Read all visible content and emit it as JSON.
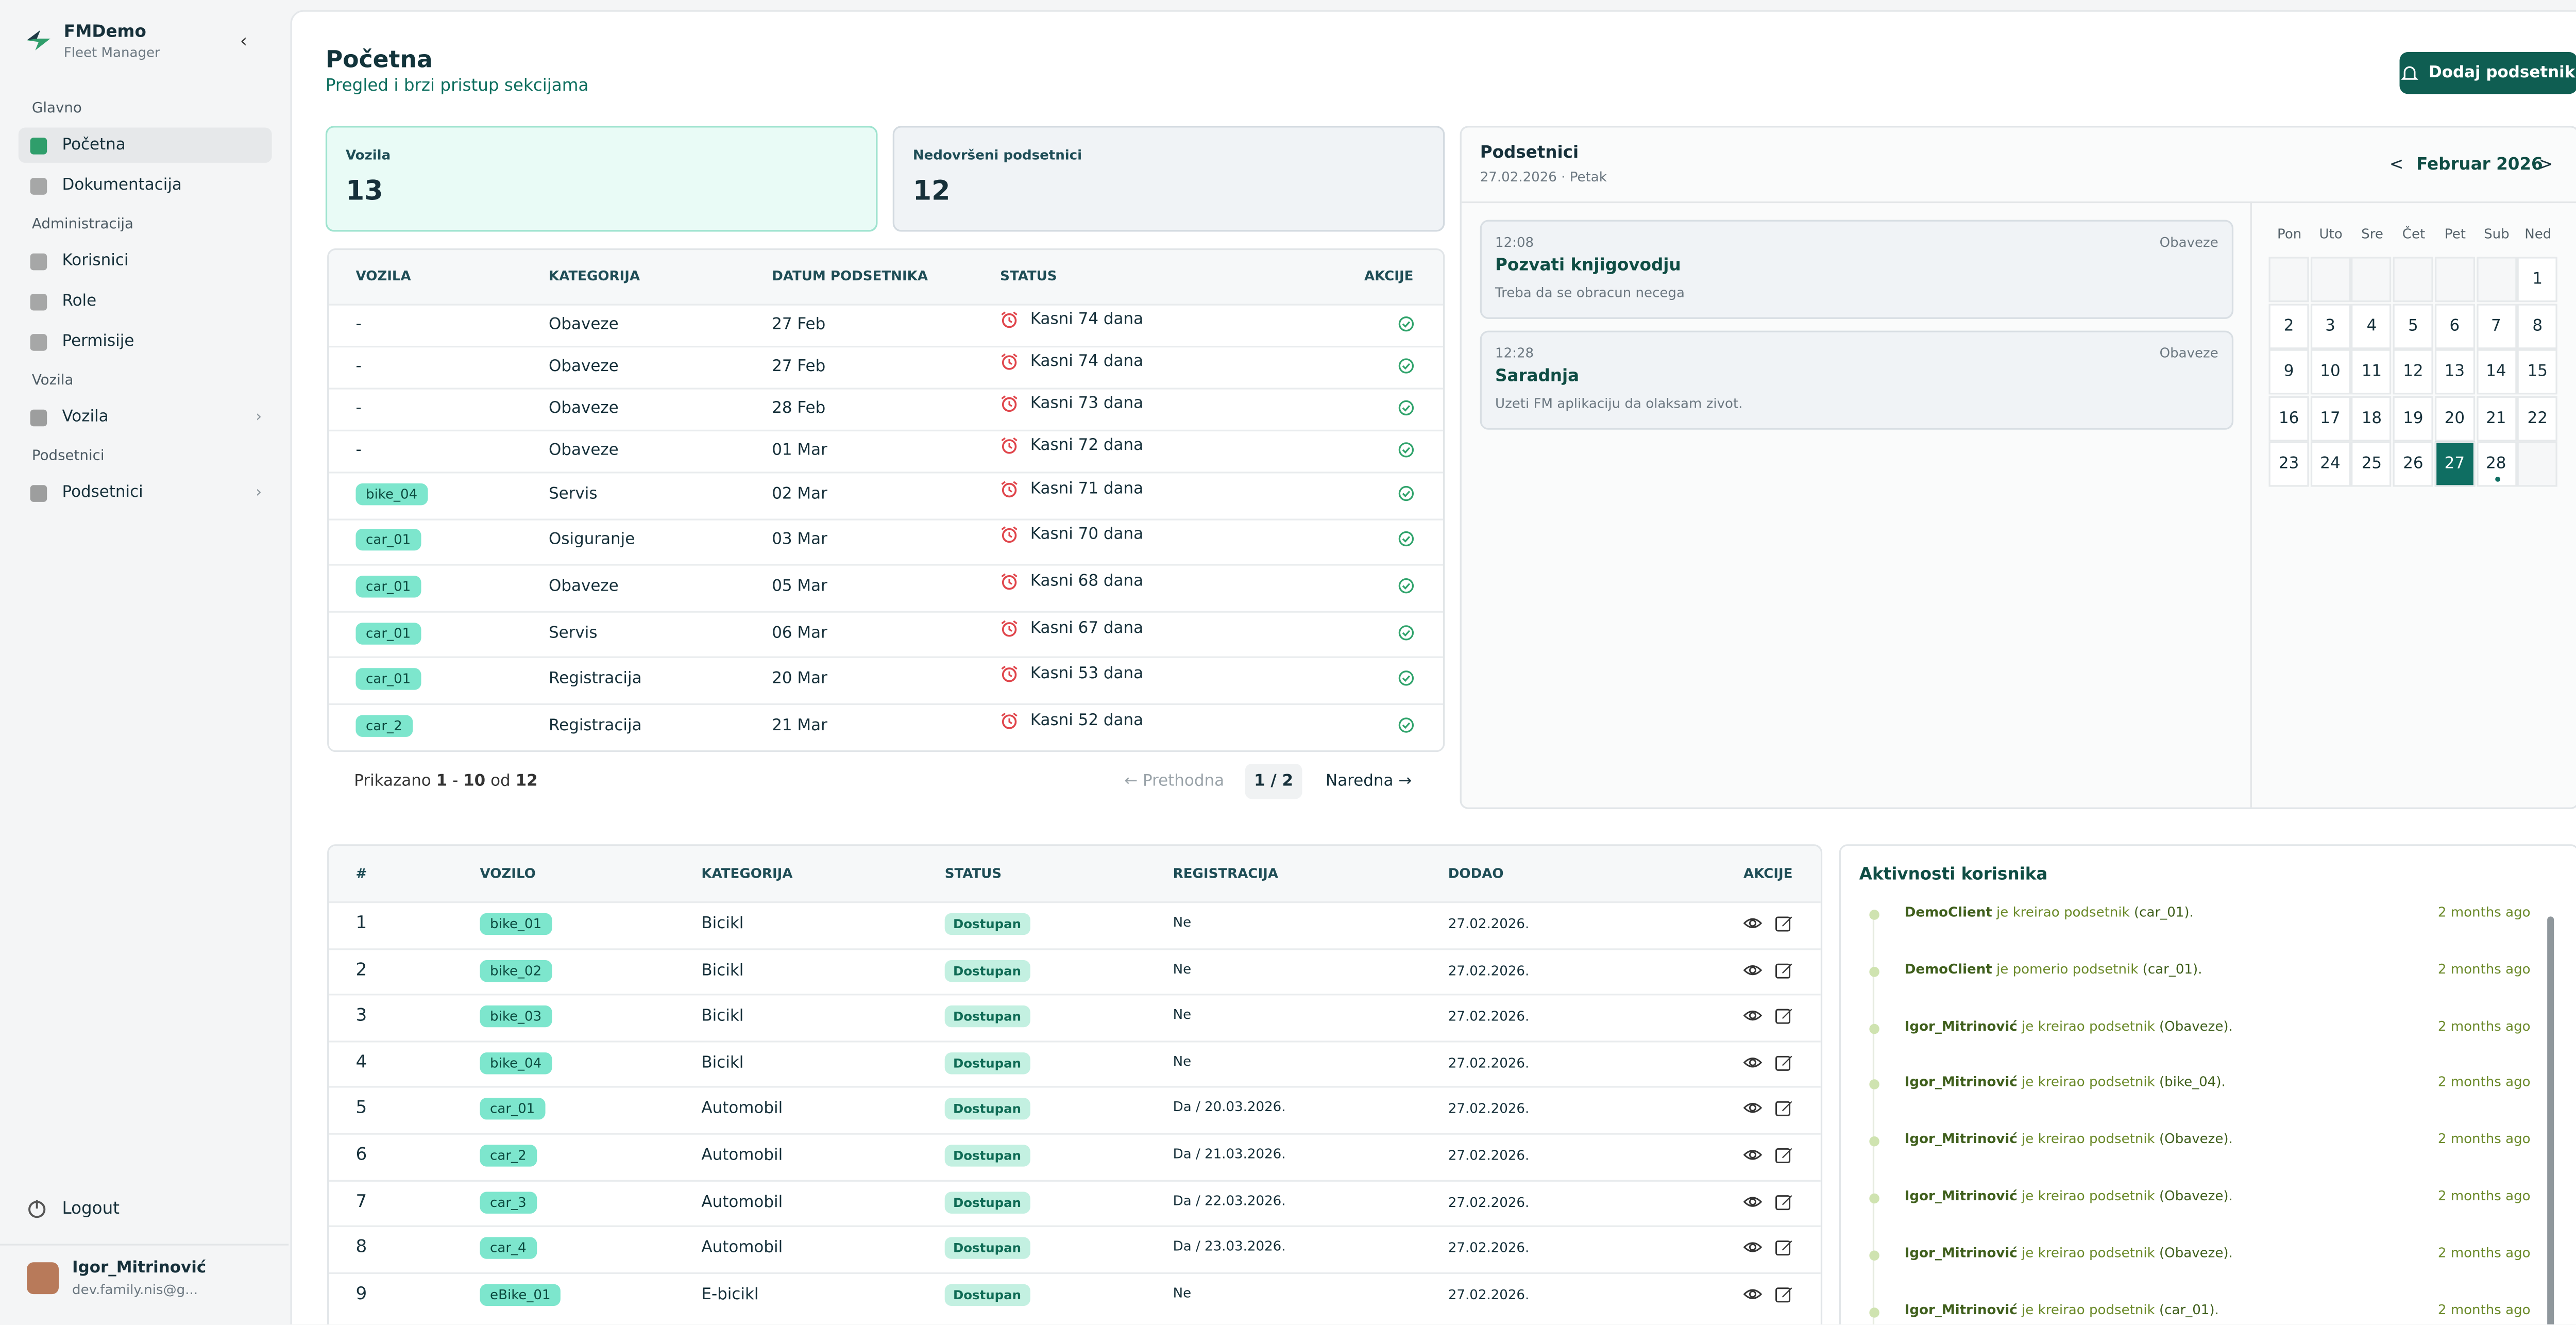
{
  "sidebar": {
    "brand": {
      "name": "FMDemo",
      "sub": "Fleet Manager"
    },
    "sections": [
      {
        "title": "Glavno",
        "items": [
          "Početna",
          "Dokumentacija"
        ]
      },
      {
        "title": "Administracija",
        "items": [
          "Korisnici",
          "Role",
          "Permisije"
        ]
      },
      {
        "title": "Vozila",
        "items": [
          "Vozila"
        ]
      },
      {
        "title": "Podsetnici",
        "items": [
          "Podsetnici"
        ]
      }
    ],
    "logout": "Logout",
    "user": {
      "name": "Igor_Mitrinović",
      "email": "dev.family.nis@g..."
    }
  },
  "header": {
    "title": "Početna",
    "subtitle": "Pregled i brzi pristup sekcijama",
    "button": "Dodaj podsetnik"
  },
  "stats": [
    {
      "label": "Vozila",
      "value": "13"
    },
    {
      "label": "Nedovršeni podsetnici",
      "value": "12"
    }
  ],
  "reminders_table": {
    "columns": [
      "VOZILA",
      "KATEGORIJA",
      "DATUM PODSETNIKA",
      "STATUS",
      "AKCIJE"
    ],
    "rows": [
      [
        "-",
        "Obaveze",
        "27 Feb",
        "Kasni 74 dana"
      ],
      [
        "-",
        "Obaveze",
        "27 Feb",
        "Kasni 74 dana"
      ],
      [
        "-",
        "Obaveze",
        "28 Feb",
        "Kasni 73 dana"
      ],
      [
        "-",
        "Obaveze",
        "01 Mar",
        "Kasni 72 dana"
      ],
      [
        "bike_04",
        "Servis",
        "02 Mar",
        "Kasni 71 dana"
      ],
      [
        "car_01",
        "Osiguranje",
        "03 Mar",
        "Kasni 70 dana"
      ],
      [
        "car_01",
        "Obaveze",
        "05 Mar",
        "Kasni 68 dana"
      ],
      [
        "car_01",
        "Servis",
        "06 Mar",
        "Kasni 67 dana"
      ],
      [
        "car_01",
        "Registracija",
        "20 Mar",
        "Kasni 53 dana"
      ],
      [
        "car_2",
        "Registracija",
        "21 Mar",
        "Kasni 52 dana"
      ]
    ],
    "pagination": {
      "prefix": "Prikazano",
      "from": "1",
      "sep": "-",
      "to": "10",
      "of": "od",
      "total": "12",
      "prev": "← Prethodna",
      "page": "1 / 2",
      "next": "Naredna →"
    }
  },
  "reminders_panel": {
    "title": "Podsetnici",
    "date": "27.02.2026 · Petak",
    "items": [
      {
        "time": "12:08",
        "category": "Obaveze",
        "title": "Pozvati knjigovodju",
        "text": "Treba da se obracun necega"
      },
      {
        "time": "12:28",
        "category": "Obaveze",
        "title": "Saradnja",
        "text": "Uzeti FM aplikaciju da olaksam zivot."
      }
    ]
  },
  "calendar": {
    "prev": "<",
    "month": "Februar 2026",
    "next": ">",
    "weekdays": [
      "Pon",
      "Uto",
      "Sre",
      "Čet",
      "Pet",
      "Sub",
      "Ned"
    ],
    "weeks": [
      [
        null,
        null,
        null,
        null,
        null,
        null,
        1
      ],
      [
        2,
        3,
        4,
        5,
        6,
        7,
        8
      ],
      [
        9,
        10,
        11,
        12,
        13,
        14,
        15
      ],
      [
        16,
        17,
        18,
        19,
        20,
        21,
        22
      ],
      [
        23,
        24,
        25,
        26,
        27,
        28,
        null
      ]
    ],
    "selected": 27,
    "marked": [
      28
    ]
  },
  "vehicles_table": {
    "columns": [
      "#",
      "VOZILO",
      "KATEGORIJA",
      "STATUS",
      "REGISTRACIJA",
      "DODAO",
      "AKCIJE"
    ],
    "rows": [
      [
        "1",
        "bike_01",
        "Bicikl",
        "Dostupan",
        "Ne",
        "27.02.2026."
      ],
      [
        "2",
        "bike_02",
        "Bicikl",
        "Dostupan",
        "Ne",
        "27.02.2026."
      ],
      [
        "3",
        "bike_03",
        "Bicikl",
        "Dostupan",
        "Ne",
        "27.02.2026."
      ],
      [
        "4",
        "bike_04",
        "Bicikl",
        "Dostupan",
        "Ne",
        "27.02.2026."
      ],
      [
        "5",
        "car_01",
        "Automobil",
        "Dostupan",
        "Da / 20.03.2026.",
        "27.02.2026."
      ],
      [
        "6",
        "car_2",
        "Automobil",
        "Dostupan",
        "Da / 21.03.2026.",
        "27.02.2026."
      ],
      [
        "7",
        "car_3",
        "Automobil",
        "Dostupan",
        "Da / 22.03.2026.",
        "27.02.2026."
      ],
      [
        "8",
        "car_4",
        "Automobil",
        "Dostupan",
        "Da / 23.03.2026.",
        "27.02.2026."
      ],
      [
        "9",
        "eBike_01",
        "E-bicikl",
        "Dostupan",
        "Ne",
        "27.02.2026."
      ]
    ]
  },
  "activity": {
    "title": "Aktivnosti korisnika",
    "items": [
      {
        "user": "DemoClient",
        "action": "je kreirao podsetnik",
        "target": "(car_01).",
        "time": "2 months ago"
      },
      {
        "user": "DemoClient",
        "action": "je pomerio podsetnik",
        "target": "(car_01).",
        "time": "2 months ago"
      },
      {
        "user": "Igor_Mitrinović",
        "action": "je kreirao podsetnik",
        "target": "(Obaveze).",
        "time": "2 months ago"
      },
      {
        "user": "Igor_Mitrinović",
        "action": "je kreirao podsetnik",
        "target": "(bike_04).",
        "time": "2 months ago"
      },
      {
        "user": "Igor_Mitrinović",
        "action": "je kreirao podsetnik",
        "target": "(Obaveze).",
        "time": "2 months ago"
      },
      {
        "user": "Igor_Mitrinović",
        "action": "je kreirao podsetnik",
        "target": "(Obaveze).",
        "time": "2 months ago"
      },
      {
        "user": "Igor_Mitrinović",
        "action": "je kreirao podsetnik",
        "target": "(Obaveze).",
        "time": "2 months ago"
      },
      {
        "user": "Igor_Mitrinović",
        "action": "je kreirao podsetnik",
        "target": "(car_01).",
        "time": "2 months ago"
      }
    ]
  }
}
